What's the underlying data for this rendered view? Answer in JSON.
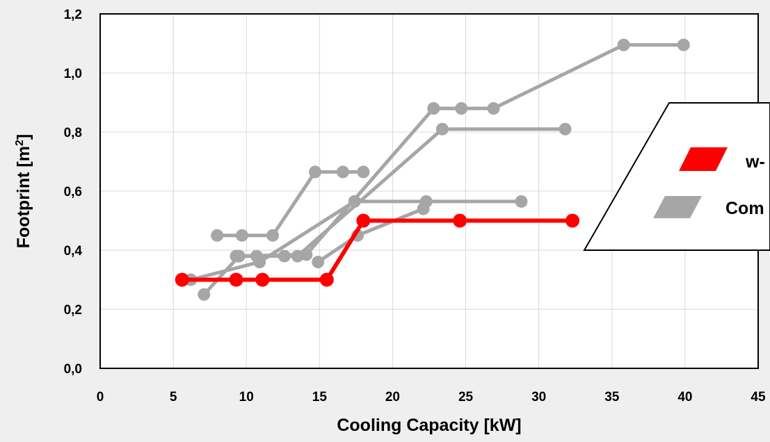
{
  "chart_data": {
    "type": "line",
    "xlabel": "Cooling Capacity [kW]",
    "ylabel_main": "Footprint [m",
    "ylabel_sup": "2",
    "ylabel_end": "]",
    "xlim": [
      0,
      45
    ],
    "ylim": [
      0,
      1.2
    ],
    "xticks": [
      0,
      5,
      10,
      15,
      20,
      25,
      30,
      35,
      40,
      45
    ],
    "xtick_labels": [
      "0",
      "5",
      "10",
      "15",
      "20",
      "25",
      "30",
      "35",
      "40",
      "45"
    ],
    "yticks": [
      0,
      0.2,
      0.4,
      0.6,
      0.8,
      1.0,
      1.2
    ],
    "ytick_labels": [
      "0,0",
      "0,2",
      "0,4",
      "0,6",
      "0,8",
      "1,0",
      "1,2"
    ],
    "grid": true,
    "legend_placement": "right (partially cut off)",
    "legend": [
      {
        "label": "w-",
        "color": "#ff0000"
      },
      {
        "label": "Com",
        "color": "#a6a6a6"
      }
    ],
    "series": [
      {
        "color": "#ff0000",
        "x": [
          5.6,
          9.3,
          11.1,
          15.5,
          18.0,
          24.6,
          32.3
        ],
        "y": [
          0.3,
          0.3,
          0.3,
          0.3,
          0.5,
          0.5,
          0.5
        ]
      },
      {
        "color": "#a6a6a6",
        "x": [
          8.0,
          9.7,
          11.8,
          14.7,
          16.6,
          18.0
        ],
        "y": [
          0.45,
          0.45,
          0.45,
          0.665,
          0.665,
          0.665
        ]
      },
      {
        "color": "#a6a6a6",
        "x": [
          9.3,
          10.7,
          12.6,
          13.5,
          23.4,
          31.8
        ],
        "y": [
          0.38,
          0.38,
          0.38,
          0.38,
          0.81,
          0.81
        ]
      },
      {
        "color": "#a6a6a6",
        "x": [
          6.2,
          10.9,
          17.4,
          22.3,
          28.8
        ],
        "y": [
          0.3,
          0.36,
          0.565,
          0.565,
          0.565
        ]
      },
      {
        "color": "#a6a6a6",
        "x": [
          7.1,
          9.5,
          14.1,
          22.8,
          24.7,
          26.9,
          35.8,
          39.9
        ],
        "y": [
          0.25,
          0.38,
          0.385,
          0.88,
          0.88,
          0.88,
          1.095,
          1.095
        ]
      },
      {
        "color": "#a6a6a6",
        "x": [
          14.9,
          17.6,
          22.1
        ],
        "y": [
          0.36,
          0.45,
          0.54
        ]
      }
    ]
  }
}
